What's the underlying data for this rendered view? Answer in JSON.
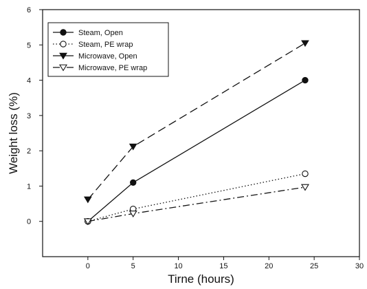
{
  "chart_data": {
    "type": "line",
    "title": "",
    "xlabel": "Tirne (hours)",
    "ylabel": "Weight loss (%)",
    "xlim": [
      -5,
      30
    ],
    "ylim": [
      -1,
      6
    ],
    "xticks": [
      0,
      5,
      10,
      15,
      20,
      25,
      30
    ],
    "yticks": [
      0,
      1,
      2,
      3,
      4,
      5,
      6
    ],
    "grid": false,
    "legend_position": "top-left",
    "series": [
      {
        "name": "Steam, Open",
        "marker": "filled-circle",
        "line_style": "solid",
        "x": [
          0,
          5,
          24
        ],
        "y": [
          0,
          1.1,
          4.0
        ]
      },
      {
        "name": "Steam, PE wrap",
        "marker": "open-circle",
        "line_style": "dotted",
        "x": [
          0,
          5,
          24
        ],
        "y": [
          0,
          0.35,
          1.35
        ]
      },
      {
        "name": "Microwave, Open",
        "marker": "filled-triangle-down",
        "line_style": "long-dash",
        "x": [
          0,
          5,
          24
        ],
        "y": [
          0.62,
          2.12,
          5.05
        ]
      },
      {
        "name": "Microwave, PE wrap",
        "marker": "open-triangle-down",
        "line_style": "dash-dot",
        "x": [
          0,
          5,
          24
        ],
        "y": [
          0,
          0.22,
          0.97
        ]
      }
    ],
    "colors": {
      "ink": "#111111",
      "background": "#ffffff"
    }
  }
}
